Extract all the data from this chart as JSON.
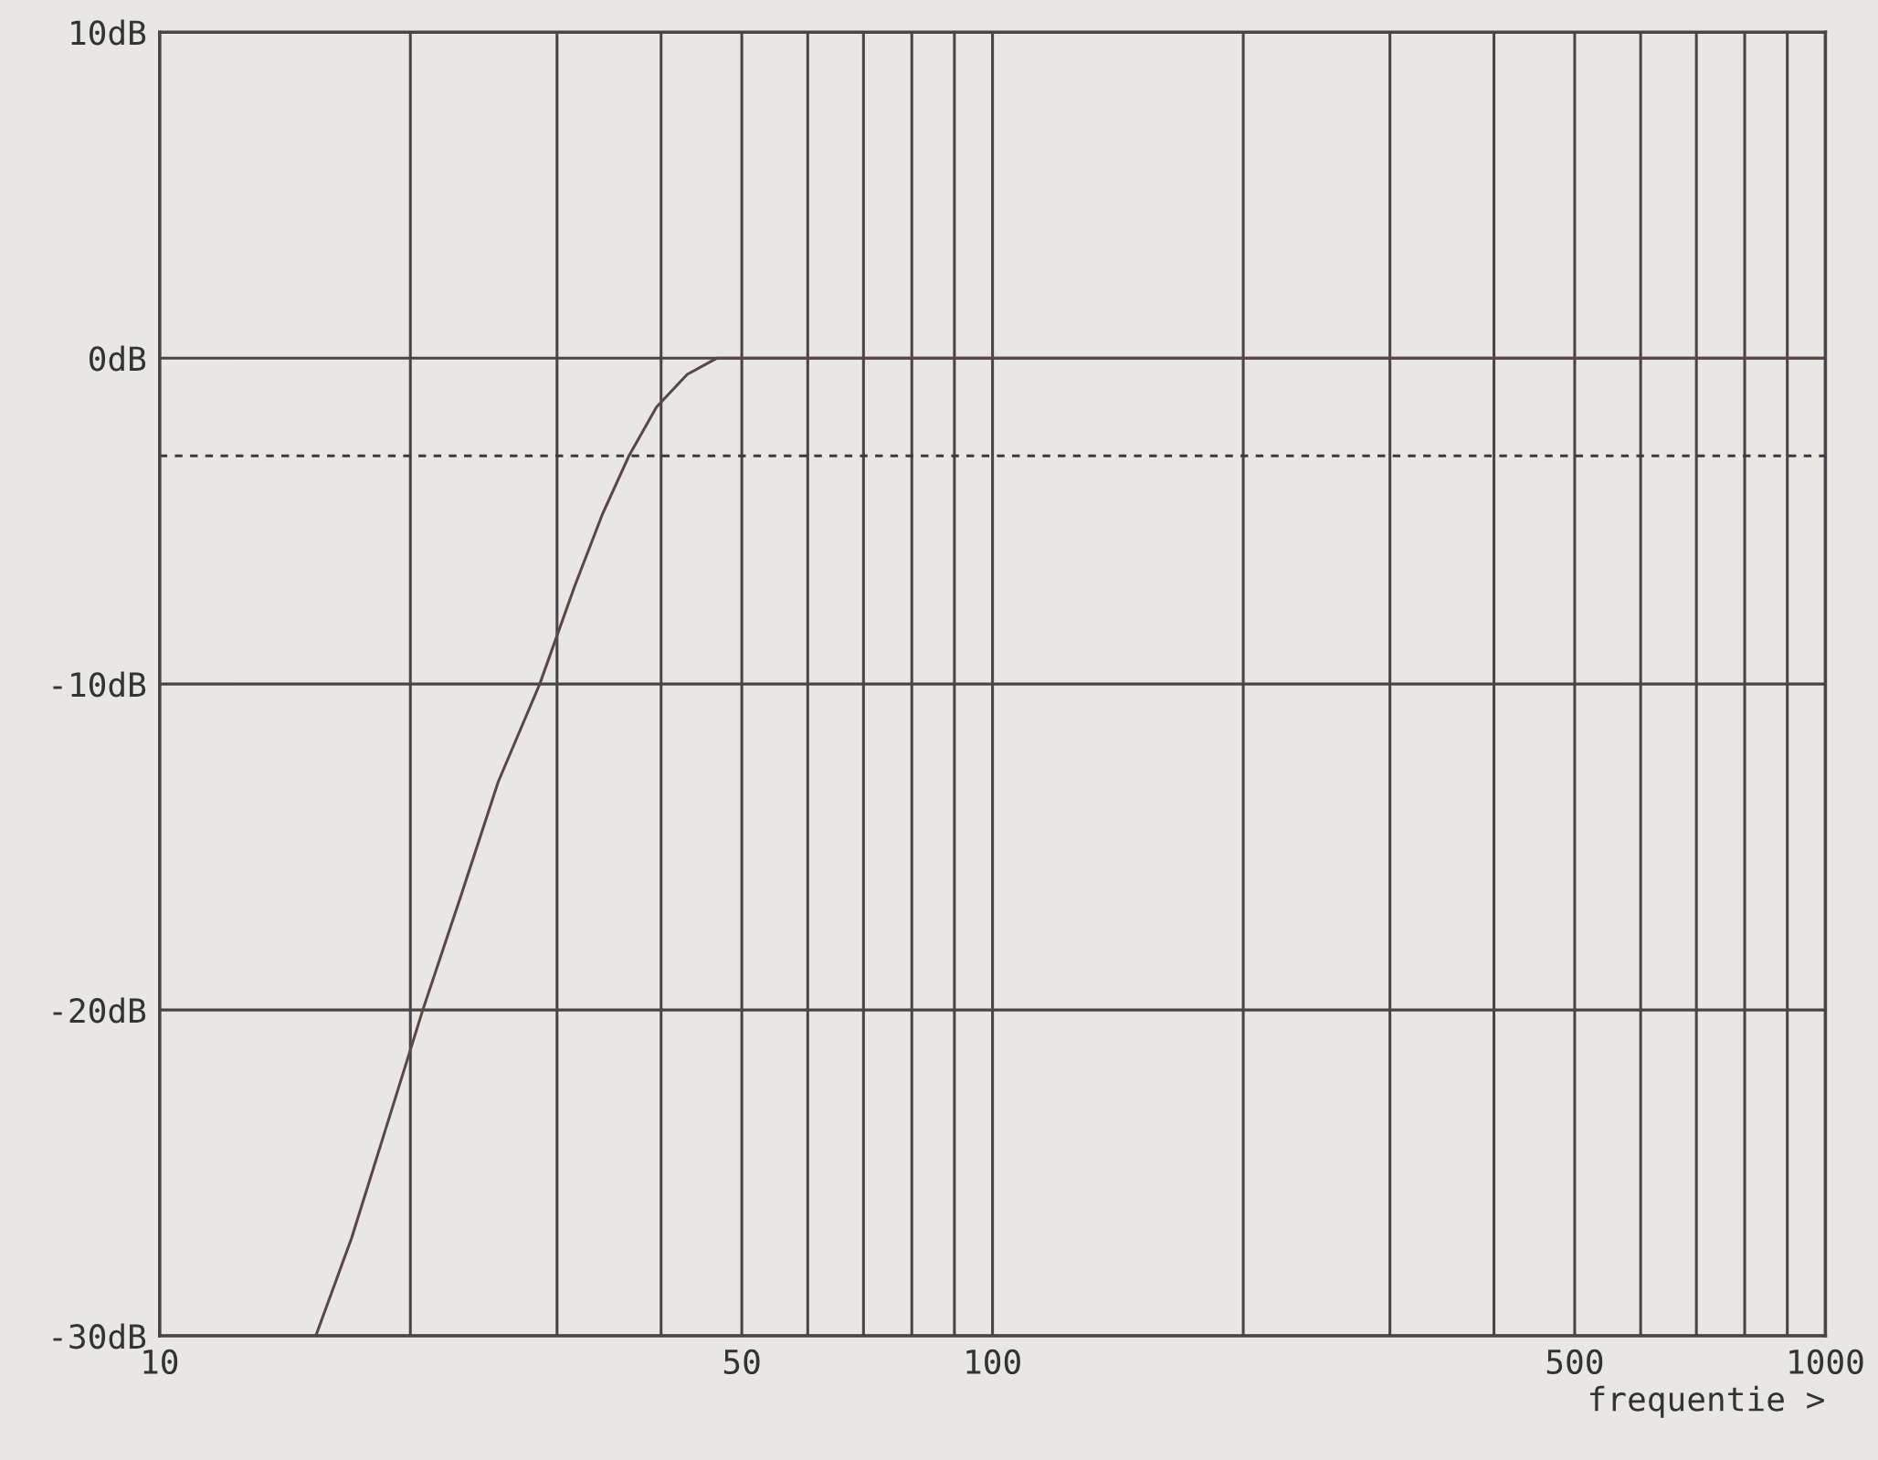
{
  "chart_data": {
    "type": "line",
    "xlabel": "frequentie >",
    "log": "x",
    "x": [
      15.4,
      17,
      18.5,
      20.7,
      23,
      25.5,
      28.6,
      31.5,
      34,
      36.6,
      39.5,
      43,
      46.7,
      60,
      100,
      200,
      500,
      1000
    ],
    "series": [
      {
        "color": "#5a4848",
        "values": [
          -30,
          -27,
          -24,
          -20,
          -16.5,
          -13,
          -10,
          -7,
          -4.8,
          -3,
          -1.5,
          -0.5,
          0,
          0,
          0,
          0,
          0,
          0
        ]
      }
    ],
    "xlim": [
      10,
      1000
    ],
    "ylim": [
      -30,
      10
    ],
    "xticks": [
      {
        "value": 10,
        "label": "10"
      },
      {
        "value": 20,
        "label": null
      },
      {
        "value": 30,
        "label": null
      },
      {
        "value": 40,
        "label": null
      },
      {
        "value": 50,
        "label": "50"
      },
      {
        "value": 60,
        "label": null
      },
      {
        "value": 70,
        "label": null
      },
      {
        "value": 80,
        "label": null
      },
      {
        "value": 90,
        "label": null
      },
      {
        "value": 100,
        "label": "100"
      },
      {
        "value": 200,
        "label": null
      },
      {
        "value": 300,
        "label": null
      },
      {
        "value": 400,
        "label": null
      },
      {
        "value": 500,
        "label": "500"
      },
      {
        "value": 600,
        "label": null
      },
      {
        "value": 700,
        "label": null
      },
      {
        "value": 800,
        "label": null
      },
      {
        "value": 900,
        "label": null
      },
      {
        "value": 1000,
        "label": "1000"
      }
    ],
    "yticks": [
      {
        "value": -30,
        "label": "-30dB"
      },
      {
        "value": -20,
        "label": "-20dB"
      },
      {
        "value": -10,
        "label": "-10dB"
      },
      {
        "value": 0,
        "label": "0dB"
      },
      {
        "value": 10,
        "label": "10dB"
      }
    ],
    "grid": true,
    "marker": "none",
    "line_style": "solid",
    "ref_lines": [
      {
        "axis": "y",
        "value": -3,
        "label": null,
        "color": "#3a3a3a",
        "line_style": "dashed"
      }
    ]
  }
}
